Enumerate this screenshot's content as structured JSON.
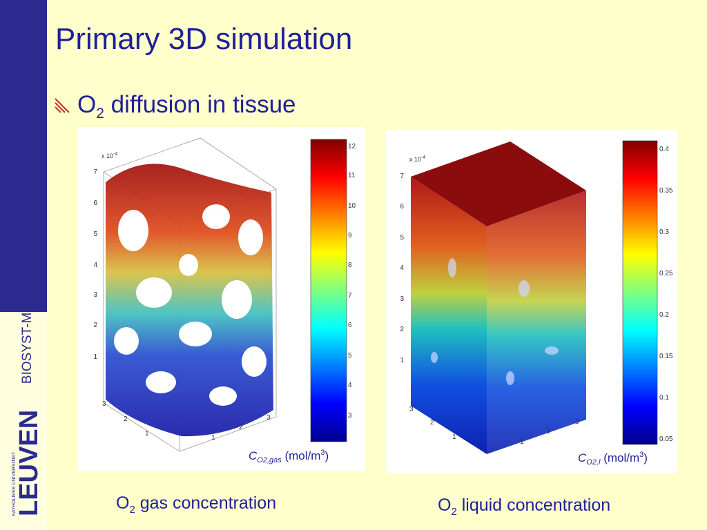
{
  "slide": {
    "title": "Primary 3D simulation",
    "bullet": {
      "prefix": "O",
      "sub": "2",
      "text": " diffusion in tissue"
    },
    "sidebar": {
      "brand": "BIOSYST-MeBioS",
      "logo_main": "LEUVEN",
      "logo_small": "KATHOLIEKE UNIVERSITEIT"
    },
    "accent_color": "#1f1f99",
    "sidebar_color": "#2b2b8f",
    "background": "#ffffcc"
  },
  "figures": {
    "left": {
      "scale_label": "x 10",
      "scale_exp": "-4",
      "z_ticks": [
        "7",
        "6",
        "5",
        "4",
        "3",
        "2",
        "1"
      ],
      "x_ticks": [
        "3",
        "2",
        "1"
      ],
      "y_ticks": [
        "3",
        "2",
        "1"
      ],
      "colorbar_ticks": [
        "12",
        "11",
        "10",
        "9",
        "8",
        "7",
        "6",
        "5",
        "4",
        "3"
      ],
      "unit_symbol": "C",
      "unit_sub": "O2,gas",
      "unit_text": " (mol/m",
      "unit_sup": "3",
      "unit_close": ")",
      "caption_prefix": "O",
      "caption_sub": "2",
      "caption_text": " gas concentration"
    },
    "right": {
      "scale_label": "x 10",
      "scale_exp": "-4",
      "z_ticks": [
        "7",
        "6",
        "5",
        "4",
        "3",
        "2",
        "1"
      ],
      "x_ticks": [
        "3",
        "2",
        "1"
      ],
      "y_ticks": [
        "3",
        "2",
        "1"
      ],
      "colorbar_ticks": [
        "0.4",
        "0.35",
        "0.3",
        "0.25",
        "0.2",
        "0.15",
        "0.1",
        "0.05"
      ],
      "unit_symbol": "C",
      "unit_sub": "O2,l",
      "unit_text": " (mol/m",
      "unit_sup": "3",
      "unit_close": ")",
      "caption_prefix": "O",
      "caption_sub": "2",
      "caption_text": " liquid concentration"
    }
  }
}
